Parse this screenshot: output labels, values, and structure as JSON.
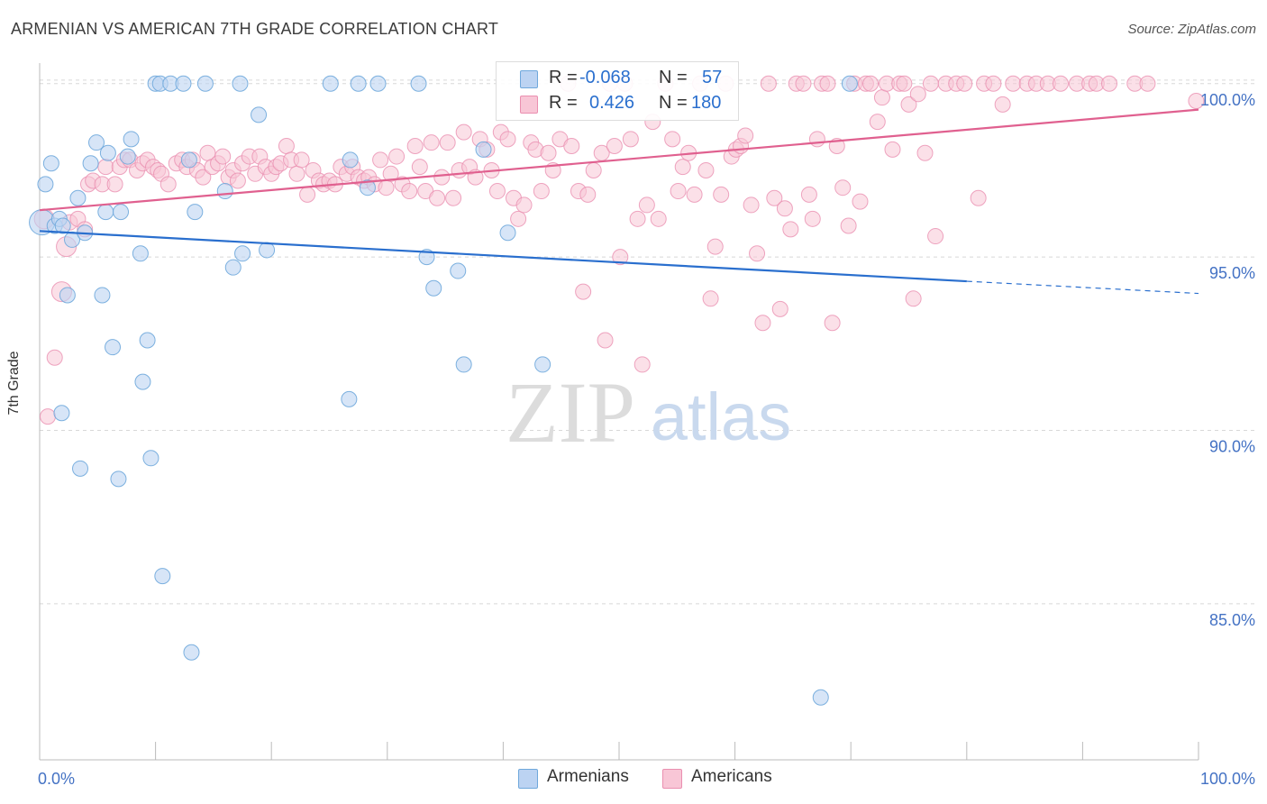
{
  "title": "ARMENIAN VS AMERICAN 7TH GRADE CORRELATION CHART",
  "source": "Source: ZipAtlas.com",
  "watermark": {
    "zip": "ZIP",
    "atlas": "atlas"
  },
  "colors": {
    "armenians": "#6fa8dc",
    "americans": "#ea8fb0",
    "armenians_line": "#2a6fce",
    "americans_line": "#e0608f",
    "tick_text": "#4472c4"
  },
  "legend": {
    "rows": [
      {
        "r_label": "R =",
        "r_value": "-0.068",
        "n_label": "N =",
        "n_value": "57"
      },
      {
        "r_label": "R =",
        "r_value": "0.426",
        "n_label": "N =",
        "n_value": "180"
      }
    ]
  },
  "bottom_legend": [
    "Armenians",
    "Americans"
  ],
  "chart_data": {
    "type": "scatter",
    "title": "ARMENIAN VS AMERICAN 7TH GRADE CORRELATION CHART",
    "xlabel": "",
    "ylabel": "7th Grade",
    "xlim": [
      0,
      100
    ],
    "ylim": [
      80.5,
      100.8
    ],
    "x_tick_labels": [
      "0.0%",
      "100.0%"
    ],
    "y_ticks": [
      85,
      90,
      95,
      100
    ],
    "y_tick_labels": [
      "85.0%",
      "90.0%",
      "95.0%",
      "100.0%"
    ],
    "grid": true,
    "legend_position": "top-center",
    "series": [
      {
        "name": "Armenians",
        "color": "#6fa8dc",
        "r": -0.068,
        "n": 57,
        "trend": {
          "x0": 0,
          "y0": 95.75,
          "x1": 80,
          "y1": 94.3,
          "dashed_to": 100,
          "dashed_y": 93.95
        },
        "points": [
          [
            0.2,
            96.0,
            2
          ],
          [
            0.5,
            97.1,
            1
          ],
          [
            1.0,
            97.7,
            1
          ],
          [
            1.3,
            95.9,
            1
          ],
          [
            1.7,
            96.1,
            1
          ],
          [
            2.0,
            95.9,
            1
          ],
          [
            2.4,
            93.9,
            1
          ],
          [
            2.8,
            95.5,
            1
          ],
          [
            3.3,
            96.7,
            1
          ],
          [
            3.5,
            88.9,
            1
          ],
          [
            4.4,
            97.7,
            1
          ],
          [
            4.9,
            98.3,
            1
          ],
          [
            3.9,
            95.7,
            1
          ],
          [
            5.4,
            93.9,
            1
          ],
          [
            5.7,
            96.3,
            1
          ],
          [
            5.9,
            98.0,
            1
          ],
          [
            6.3,
            92.4,
            1
          ],
          [
            6.8,
            88.6,
            1
          ],
          [
            7.0,
            96.3,
            1
          ],
          [
            7.6,
            97.9,
            1
          ],
          [
            7.9,
            98.4,
            1
          ],
          [
            8.7,
            95.1,
            1
          ],
          [
            8.9,
            91.4,
            1
          ],
          [
            9.3,
            92.6,
            1
          ],
          [
            9.6,
            89.2,
            1
          ],
          [
            10.0,
            100.0,
            1
          ],
          [
            10.4,
            100.0,
            1
          ],
          [
            10.6,
            85.8,
            1
          ],
          [
            11.3,
            100.0,
            1
          ],
          [
            12.4,
            100.0,
            1
          ],
          [
            12.9,
            97.8,
            1
          ],
          [
            13.1,
            83.6,
            1
          ],
          [
            13.4,
            96.3,
            1
          ],
          [
            14.3,
            100.0,
            1
          ],
          [
            16.0,
            96.9,
            1
          ],
          [
            16.7,
            94.7,
            1
          ],
          [
            17.3,
            100.0,
            1
          ],
          [
            17.5,
            95.1,
            1
          ],
          [
            18.9,
            99.1,
            1
          ],
          [
            19.6,
            95.2,
            1
          ],
          [
            25.1,
            100.0,
            1
          ],
          [
            26.7,
            90.9,
            1
          ],
          [
            26.8,
            97.8,
            1
          ],
          [
            27.5,
            100.0,
            1
          ],
          [
            28.3,
            97.0,
            1
          ],
          [
            29.2,
            100.0,
            1
          ],
          [
            32.7,
            100.0,
            1
          ],
          [
            33.4,
            95.0,
            1
          ],
          [
            34.0,
            94.1,
            1
          ],
          [
            36.1,
            94.6,
            1
          ],
          [
            36.6,
            91.9,
            1
          ],
          [
            38.3,
            98.1,
            1
          ],
          [
            40.4,
            95.7,
            1
          ],
          [
            43.4,
            91.9,
            1
          ],
          [
            67.4,
            82.3,
            1
          ],
          [
            69.9,
            100.0,
            1
          ],
          [
            1.9,
            90.5,
            1
          ]
        ]
      },
      {
        "name": "Americans",
        "color": "#ea8fb0",
        "r": 0.426,
        "n": 180,
        "trend": {
          "x0": 0,
          "y0": 96.35,
          "x1": 100,
          "y1": 99.25
        },
        "points": [
          [
            0.4,
            96.1,
            2
          ],
          [
            0.7,
            90.4,
            1
          ],
          [
            1.3,
            92.1,
            1
          ],
          [
            1.9,
            94.0,
            2
          ],
          [
            2.3,
            95.3,
            2
          ],
          [
            2.6,
            96.0,
            1
          ],
          [
            3.3,
            96.1,
            1
          ],
          [
            3.9,
            95.8,
            1
          ],
          [
            4.2,
            97.1,
            1
          ],
          [
            4.6,
            97.2,
            1
          ],
          [
            5.4,
            97.1,
            1
          ],
          [
            5.7,
            97.6,
            1
          ],
          [
            6.5,
            97.1,
            1
          ],
          [
            6.9,
            97.6,
            1
          ],
          [
            7.3,
            97.8,
            1
          ],
          [
            7.8,
            97.8,
            1
          ],
          [
            8.4,
            97.5,
            1
          ],
          [
            8.9,
            97.7,
            1
          ],
          [
            9.3,
            97.8,
            1
          ],
          [
            9.8,
            97.6,
            1
          ],
          [
            10.2,
            97.5,
            1
          ],
          [
            10.5,
            97.4,
            1
          ],
          [
            11.1,
            97.1,
            1
          ],
          [
            11.8,
            97.7,
            1
          ],
          [
            12.3,
            97.8,
            1
          ],
          [
            12.7,
            97.6,
            1
          ],
          [
            13.2,
            97.8,
            1
          ],
          [
            13.6,
            97.5,
            1
          ],
          [
            14.1,
            97.3,
            1
          ],
          [
            14.5,
            98.0,
            1
          ],
          [
            14.9,
            97.6,
            1
          ],
          [
            15.4,
            97.7,
            1
          ],
          [
            15.8,
            97.9,
            1
          ],
          [
            16.3,
            97.3,
            1
          ],
          [
            16.7,
            97.5,
            1
          ],
          [
            17.1,
            97.2,
            1
          ],
          [
            17.5,
            97.7,
            1
          ],
          [
            18.1,
            97.9,
            1
          ],
          [
            18.6,
            97.4,
            1
          ],
          [
            19.0,
            97.9,
            1
          ],
          [
            19.5,
            97.6,
            1
          ],
          [
            20.0,
            97.4,
            1
          ],
          [
            20.4,
            97.6,
            1
          ],
          [
            20.8,
            97.7,
            1
          ],
          [
            21.3,
            98.2,
            1
          ],
          [
            21.7,
            97.8,
            1
          ],
          [
            22.2,
            97.4,
            1
          ],
          [
            22.6,
            97.8,
            1
          ],
          [
            23.1,
            96.8,
            1
          ],
          [
            23.6,
            97.5,
            1
          ],
          [
            24.1,
            97.2,
            1
          ],
          [
            24.5,
            97.1,
            1
          ],
          [
            25.0,
            97.2,
            1
          ],
          [
            25.5,
            97.1,
            1
          ],
          [
            26.0,
            97.6,
            1
          ],
          [
            26.5,
            97.4,
            1
          ],
          [
            27.0,
            97.6,
            1
          ],
          [
            27.5,
            97.3,
            1
          ],
          [
            28.0,
            97.2,
            1
          ],
          [
            28.4,
            97.3,
            1
          ],
          [
            28.9,
            97.1,
            1
          ],
          [
            29.4,
            97.8,
            1
          ],
          [
            29.9,
            97.0,
            1
          ],
          [
            30.3,
            97.4,
            1
          ],
          [
            30.8,
            97.9,
            1
          ],
          [
            31.3,
            97.1,
            1
          ],
          [
            31.9,
            96.9,
            1
          ],
          [
            32.4,
            98.2,
            1
          ],
          [
            32.8,
            97.6,
            1
          ],
          [
            33.3,
            96.9,
            1
          ],
          [
            33.8,
            98.3,
            1
          ],
          [
            34.3,
            96.7,
            1
          ],
          [
            34.7,
            97.3,
            1
          ],
          [
            35.2,
            98.3,
            1
          ],
          [
            35.7,
            96.7,
            1
          ],
          [
            36.2,
            97.5,
            1
          ],
          [
            36.6,
            98.6,
            1
          ],
          [
            37.1,
            97.6,
            1
          ],
          [
            37.6,
            97.3,
            1
          ],
          [
            38.0,
            98.4,
            1
          ],
          [
            38.6,
            98.1,
            1
          ],
          [
            39.0,
            97.5,
            1
          ],
          [
            39.5,
            96.9,
            1
          ],
          [
            39.8,
            98.6,
            1
          ],
          [
            40.4,
            98.4,
            1
          ],
          [
            40.9,
            96.7,
            1
          ],
          [
            41.3,
            96.1,
            1
          ],
          [
            41.8,
            96.5,
            1
          ],
          [
            42.4,
            98.3,
            1
          ],
          [
            42.8,
            98.1,
            1
          ],
          [
            43.3,
            96.9,
            1
          ],
          [
            43.9,
            98.0,
            1
          ],
          [
            44.3,
            97.5,
            1
          ],
          [
            44.9,
            98.4,
            1
          ],
          [
            45.6,
            100.0,
            1
          ],
          [
            45.9,
            98.2,
            1
          ],
          [
            46.5,
            96.9,
            1
          ],
          [
            46.9,
            94.0,
            1
          ],
          [
            47.3,
            96.8,
            1
          ],
          [
            47.8,
            97.5,
            1
          ],
          [
            48.5,
            98.0,
            1
          ],
          [
            48.8,
            92.6,
            1
          ],
          [
            49.2,
            100.0,
            1
          ],
          [
            49.6,
            98.2,
            1
          ],
          [
            50.1,
            95.0,
            1
          ],
          [
            50.5,
            100.0,
            1
          ],
          [
            51.0,
            98.4,
            1
          ],
          [
            51.6,
            96.1,
            1
          ],
          [
            52.0,
            91.9,
            1
          ],
          [
            52.4,
            96.5,
            1
          ],
          [
            52.9,
            98.9,
            1
          ],
          [
            53.4,
            96.1,
            1
          ],
          [
            54.0,
            100.0,
            1
          ],
          [
            54.6,
            98.4,
            1
          ],
          [
            55.1,
            96.9,
            1
          ],
          [
            55.5,
            97.6,
            1
          ],
          [
            56.0,
            98.0,
            1
          ],
          [
            56.5,
            96.8,
            1
          ],
          [
            57.0,
            100.0,
            1
          ],
          [
            57.5,
            97.5,
            1
          ],
          [
            57.9,
            93.8,
            1
          ],
          [
            58.3,
            95.3,
            1
          ],
          [
            58.8,
            96.8,
            1
          ],
          [
            59.2,
            100.0,
            1
          ],
          [
            59.7,
            97.9,
            1
          ],
          [
            60.1,
            98.1,
            1
          ],
          [
            60.5,
            98.2,
            1
          ],
          [
            60.9,
            98.5,
            1
          ],
          [
            61.4,
            96.5,
            1
          ],
          [
            61.9,
            95.1,
            1
          ],
          [
            62.4,
            93.1,
            1
          ],
          [
            62.9,
            100.0,
            1
          ],
          [
            63.4,
            96.7,
            1
          ],
          [
            63.9,
            93.5,
            1
          ],
          [
            64.3,
            96.4,
            1
          ],
          [
            64.8,
            95.8,
            1
          ],
          [
            65.3,
            100.0,
            1
          ],
          [
            65.9,
            100.0,
            1
          ],
          [
            66.4,
            96.8,
            1
          ],
          [
            66.7,
            96.1,
            1
          ],
          [
            67.1,
            98.4,
            1
          ],
          [
            67.5,
            100.0,
            1
          ],
          [
            68.0,
            100.0,
            1
          ],
          [
            68.4,
            93.1,
            1
          ],
          [
            68.8,
            98.2,
            1
          ],
          [
            69.3,
            97.0,
            1
          ],
          [
            69.8,
            95.9,
            1
          ],
          [
            70.3,
            100.0,
            1
          ],
          [
            70.8,
            96.6,
            1
          ],
          [
            71.3,
            100.0,
            1
          ],
          [
            71.7,
            100.0,
            1
          ],
          [
            72.3,
            98.9,
            1
          ],
          [
            72.7,
            99.6,
            1
          ],
          [
            73.1,
            100.0,
            1
          ],
          [
            73.6,
            98.1,
            1
          ],
          [
            74.2,
            100.0,
            1
          ],
          [
            74.6,
            100.0,
            1
          ],
          [
            75.0,
            99.4,
            1
          ],
          [
            75.4,
            93.8,
            1
          ],
          [
            75.8,
            99.7,
            1
          ],
          [
            76.4,
            98.0,
            1
          ],
          [
            76.9,
            100.0,
            1
          ],
          [
            77.3,
            95.6,
            1
          ],
          [
            78.2,
            100.0,
            1
          ],
          [
            79.1,
            100.0,
            1
          ],
          [
            79.8,
            100.0,
            1
          ],
          [
            81.0,
            96.7,
            1
          ],
          [
            81.5,
            100.0,
            1
          ],
          [
            82.3,
            100.0,
            1
          ],
          [
            83.1,
            99.4,
            1
          ],
          [
            84.0,
            100.0,
            1
          ],
          [
            85.2,
            100.0,
            1
          ],
          [
            86.0,
            100.0,
            1
          ],
          [
            87.0,
            100.0,
            1
          ],
          [
            88.1,
            100.0,
            1
          ],
          [
            89.5,
            100.0,
            1
          ],
          [
            90.6,
            100.0,
            1
          ],
          [
            91.2,
            100.0,
            1
          ],
          [
            92.3,
            100.0,
            1
          ],
          [
            94.5,
            100.0,
            1
          ],
          [
            95.6,
            100.0,
            1
          ],
          [
            99.8,
            99.5,
            1
          ]
        ]
      }
    ]
  }
}
